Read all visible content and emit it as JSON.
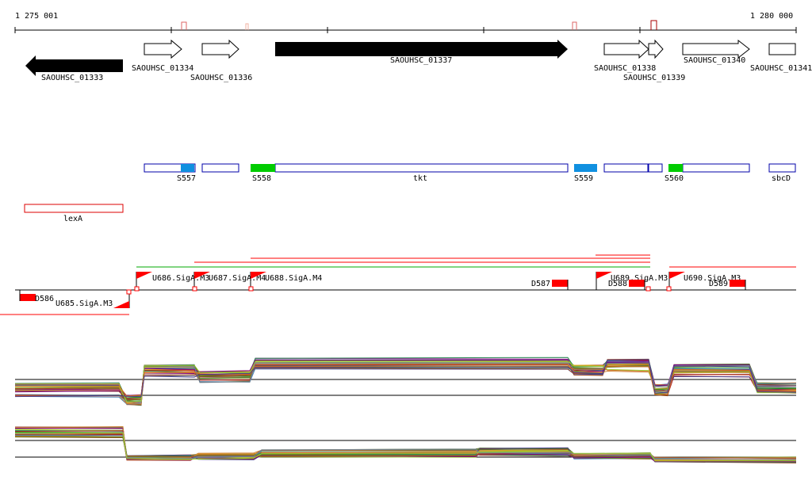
{
  "ruler": {
    "start_label": "1 275 001",
    "end_label": "1 280 000"
  },
  "genes": [
    {
      "id": "SAOUHSC_01333",
      "strand": "-",
      "fill": "black"
    },
    {
      "id": "SAOUHSC_01334",
      "strand": "+",
      "fill": "white"
    },
    {
      "id": "SAOUHSC_01336",
      "strand": "+",
      "fill": "white"
    },
    {
      "id": "SAOUHSC_01337",
      "strand": "+",
      "fill": "black"
    },
    {
      "id": "SAOUHSC_01338",
      "strand": "+",
      "fill": "white"
    },
    {
      "id": "SAOUHSC_01339",
      "strand": "+",
      "fill": "white"
    },
    {
      "id": "SAOUHSC_01340",
      "strand": "+",
      "fill": "white"
    },
    {
      "id": "SAOUHSC_01341",
      "strand": "+",
      "fill": "white"
    }
  ],
  "features": [
    {
      "label": "S557"
    },
    {
      "label": "S558"
    },
    {
      "label": "tkt"
    },
    {
      "label": "S559"
    },
    {
      "label": "S560"
    },
    {
      "label": "sbcD"
    }
  ],
  "regulators": [
    {
      "label": "lexA"
    }
  ],
  "promoters": [
    {
      "label": "U686.SigA.M3"
    },
    {
      "label": "U687.SigA.M4"
    },
    {
      "label": "U688.SigA.M4"
    },
    {
      "label": "U689.SigA.M3"
    },
    {
      "label": "U690.SigA.M3"
    },
    {
      "label": "U685.SigA.M3"
    }
  ],
  "terminators": [
    {
      "label": "D586"
    },
    {
      "label": "D587"
    },
    {
      "label": "D588"
    },
    {
      "label": "D589"
    }
  ],
  "colors": {
    "gene_black": "#000000",
    "feature_outline": "#0000aa",
    "feature_blue": "#1090e0",
    "feature_green": "#00cc00",
    "regulator_red": "#dd0000",
    "promoter_red": "#ff0000",
    "transcript_green": "#00aa00"
  }
}
